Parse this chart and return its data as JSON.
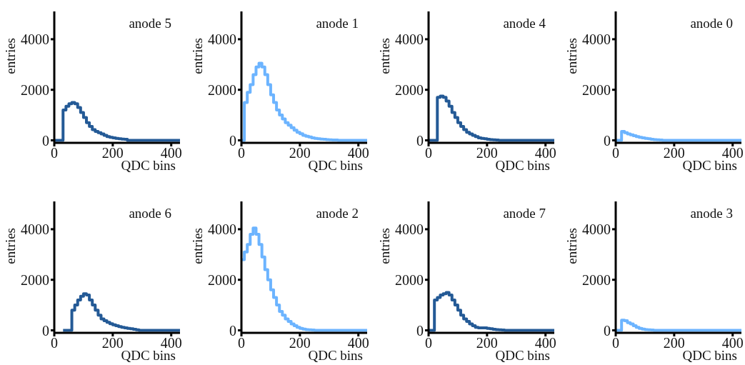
{
  "chart_data": [
    {
      "type": "histogram",
      "title": "anode 5",
      "xlabel": "QDC bins",
      "ylabel": "entries",
      "color": "#245a96",
      "xlim": [
        0,
        430
      ],
      "ylim": [
        -100,
        5100
      ],
      "xticks": [
        0,
        200,
        400
      ],
      "yticks": [
        0,
        2000,
        4000
      ],
      "bins": [
        0,
        10,
        20,
        30,
        40,
        50,
        60,
        70,
        80,
        90,
        100,
        110,
        120,
        130,
        140,
        150,
        160,
        170,
        180,
        190,
        200,
        210,
        220,
        230,
        240,
        250,
        260,
        270,
        280,
        290,
        300,
        310,
        320,
        330,
        340,
        350,
        360,
        370,
        380,
        390,
        400,
        410,
        420,
        430
      ],
      "values": [
        0,
        0,
        0,
        1200,
        1350,
        1450,
        1500,
        1450,
        1300,
        1100,
        900,
        700,
        550,
        420,
        350,
        300,
        250,
        200,
        150,
        120,
        100,
        80,
        60,
        50,
        40,
        0,
        0,
        0,
        0,
        0,
        0,
        0,
        0,
        0,
        0,
        0,
        0,
        0,
        0,
        0,
        0,
        0,
        0
      ]
    },
    {
      "type": "histogram",
      "title": "anode 1",
      "xlabel": "QDC bins",
      "ylabel": "entries",
      "color": "#6cb4ff",
      "xlim": [
        0,
        430
      ],
      "ylim": [
        -100,
        5100
      ],
      "xticks": [
        0,
        200,
        400
      ],
      "yticks": [
        0,
        2000,
        4000
      ],
      "bins": [
        0,
        10,
        20,
        30,
        40,
        50,
        60,
        70,
        80,
        90,
        100,
        110,
        120,
        130,
        140,
        150,
        160,
        170,
        180,
        190,
        200,
        210,
        220,
        230,
        240,
        250,
        260,
        270,
        280,
        290,
        300,
        310,
        320,
        330,
        340,
        350,
        360,
        370,
        380,
        390,
        400,
        410,
        420,
        430
      ],
      "values": [
        0,
        1500,
        1900,
        2200,
        2600,
        2900,
        3050,
        2900,
        2600,
        2200,
        1800,
        1500,
        1200,
        1000,
        850,
        700,
        600,
        500,
        400,
        320,
        260,
        200,
        160,
        130,
        100,
        80,
        60,
        50,
        40,
        30,
        20,
        10,
        10,
        0,
        0,
        0,
        0,
        0,
        0,
        0,
        0,
        0,
        0
      ]
    },
    {
      "type": "histogram",
      "title": "anode 4",
      "xlabel": "QDC bins",
      "ylabel": "entries",
      "color": "#245a96",
      "xlim": [
        0,
        430
      ],
      "ylim": [
        -100,
        5100
      ],
      "xticks": [
        0,
        200,
        400
      ],
      "yticks": [
        0,
        2000,
        4000
      ],
      "bins": [
        0,
        10,
        20,
        30,
        40,
        50,
        60,
        70,
        80,
        90,
        100,
        110,
        120,
        130,
        140,
        150,
        160,
        170,
        180,
        190,
        200,
        210,
        220,
        230,
        240,
        250,
        260,
        270,
        280,
        290,
        300,
        310,
        320,
        330,
        340,
        350,
        360,
        370,
        380,
        390,
        400,
        410,
        420,
        430
      ],
      "values": [
        0,
        0,
        0,
        1700,
        1750,
        1700,
        1550,
        1350,
        1100,
        900,
        700,
        550,
        420,
        320,
        250,
        200,
        150,
        100,
        80,
        60,
        40,
        30,
        20,
        10,
        0,
        0,
        0,
        0,
        0,
        0,
        0,
        0,
        0,
        0,
        0,
        0,
        0,
        0,
        0,
        0,
        0,
        0,
        0
      ]
    },
    {
      "type": "histogram",
      "title": "anode 0",
      "xlabel": "QDC bins",
      "ylabel": "entries",
      "color": "#6cb4ff",
      "xlim": [
        0,
        430
      ],
      "ylim": [
        -100,
        5100
      ],
      "xticks": [
        0,
        200,
        400
      ],
      "yticks": [
        0,
        2000,
        4000
      ],
      "bins": [
        0,
        10,
        20,
        30,
        40,
        50,
        60,
        70,
        80,
        90,
        100,
        110,
        120,
        130,
        140,
        150,
        160,
        170,
        180,
        190,
        200,
        210,
        220,
        230,
        240,
        250,
        260,
        270,
        280,
        290,
        300,
        310,
        320,
        330,
        340,
        350,
        360,
        370,
        380,
        390,
        400,
        410,
        420,
        430
      ],
      "values": [
        0,
        0,
        350,
        300,
        250,
        220,
        180,
        150,
        120,
        100,
        80,
        60,
        40,
        30,
        20,
        10,
        0,
        0,
        0,
        0,
        0,
        0,
        0,
        0,
        0,
        0,
        0,
        0,
        0,
        0,
        0,
        0,
        0,
        0,
        0,
        0,
        0,
        0,
        0,
        0,
        0,
        0,
        0
      ]
    },
    {
      "type": "histogram",
      "title": "anode 6",
      "xlabel": "QDC bins",
      "ylabel": "entries",
      "color": "#245a96",
      "xlim": [
        0,
        430
      ],
      "ylim": [
        -100,
        5100
      ],
      "xticks": [
        0,
        200,
        400
      ],
      "yticks": [
        0,
        2000,
        4000
      ],
      "bins": [
        30,
        40,
        50,
        60,
        70,
        80,
        90,
        100,
        110,
        120,
        130,
        140,
        150,
        160,
        170,
        180,
        190,
        200,
        210,
        220,
        230,
        240,
        250,
        260,
        270,
        280,
        290,
        300,
        310,
        320,
        330,
        340,
        350,
        360,
        370,
        380,
        390,
        400,
        410,
        420,
        430
      ],
      "values": [
        0,
        0,
        0,
        800,
        1000,
        1200,
        1350,
        1450,
        1400,
        1200,
        1000,
        800,
        600,
        450,
        380,
        320,
        260,
        220,
        180,
        150,
        120,
        100,
        80,
        60,
        40,
        20,
        0,
        0,
        0,
        0,
        0,
        0,
        0,
        0,
        0,
        0,
        0,
        0,
        0,
        0
      ]
    },
    {
      "type": "histogram",
      "title": "anode 2",
      "xlabel": "QDC bins",
      "ylabel": "entries",
      "color": "#6cb4ff",
      "xlim": [
        0,
        430
      ],
      "ylim": [
        -100,
        5100
      ],
      "xticks": [
        0,
        200,
        400
      ],
      "yticks": [
        0,
        2000,
        4000
      ],
      "bins": [
        0,
        10,
        20,
        30,
        40,
        50,
        60,
        70,
        80,
        90,
        100,
        110,
        120,
        130,
        140,
        150,
        160,
        170,
        180,
        190,
        200,
        210,
        220,
        230,
        240,
        250,
        260,
        270,
        280,
        290,
        300,
        310,
        320,
        330,
        340,
        350,
        360,
        370,
        380,
        390,
        400,
        410,
        420,
        430
      ],
      "values": [
        2800,
        3100,
        3400,
        3800,
        4050,
        3800,
        3400,
        2900,
        2400,
        2000,
        1600,
        1300,
        1000,
        750,
        600,
        450,
        350,
        250,
        180,
        120,
        80,
        50,
        30,
        20,
        10,
        0,
        0,
        0,
        0,
        0,
        0,
        0,
        0,
        0,
        0,
        0,
        0,
        0,
        0,
        0,
        0,
        0,
        0
      ]
    },
    {
      "type": "histogram",
      "title": "anode 7",
      "xlabel": "QDC bins",
      "ylabel": "entries",
      "color": "#245a96",
      "xlim": [
        0,
        430
      ],
      "ylim": [
        -100,
        5100
      ],
      "xticks": [
        0,
        200,
        400
      ],
      "yticks": [
        0,
        2000,
        4000
      ],
      "bins": [
        0,
        10,
        20,
        30,
        40,
        50,
        60,
        70,
        80,
        90,
        100,
        110,
        120,
        130,
        140,
        150,
        160,
        170,
        180,
        190,
        200,
        210,
        220,
        230,
        240,
        250,
        260,
        270,
        280,
        290,
        300,
        310,
        320,
        330,
        340,
        350,
        360,
        370,
        380,
        390,
        400,
        410,
        420,
        430
      ],
      "values": [
        0,
        0,
        1200,
        1300,
        1400,
        1450,
        1500,
        1400,
        1200,
        1000,
        800,
        600,
        450,
        350,
        250,
        180,
        120,
        100,
        100,
        100,
        80,
        60,
        40,
        30,
        20,
        10,
        0,
        0,
        0,
        0,
        0,
        0,
        0,
        0,
        0,
        0,
        0,
        0,
        0,
        0,
        0,
        0,
        0
      ]
    },
    {
      "type": "histogram",
      "title": "anode 3",
      "xlabel": "QDC bins",
      "ylabel": "entries",
      "color": "#6cb4ff",
      "xlim": [
        0,
        430
      ],
      "ylim": [
        -100,
        5100
      ],
      "xticks": [
        0,
        200,
        400
      ],
      "yticks": [
        0,
        2000,
        4000
      ],
      "bins": [
        0,
        10,
        20,
        30,
        40,
        50,
        60,
        70,
        80,
        90,
        100,
        110,
        120,
        130,
        140,
        150,
        160,
        170,
        180,
        190,
        200,
        210,
        220,
        230,
        240,
        250,
        260,
        270,
        280,
        290,
        300,
        310,
        320,
        330,
        340,
        350,
        360,
        370,
        380,
        390,
        400,
        410,
        420,
        430
      ],
      "values": [
        0,
        0,
        400,
        380,
        300,
        250,
        180,
        120,
        80,
        50,
        30,
        20,
        10,
        0,
        0,
        0,
        0,
        0,
        0,
        0,
        0,
        0,
        0,
        0,
        0,
        0,
        0,
        0,
        0,
        0,
        0,
        0,
        0,
        0,
        0,
        0,
        0,
        0,
        0,
        0,
        0,
        0,
        0
      ]
    }
  ]
}
